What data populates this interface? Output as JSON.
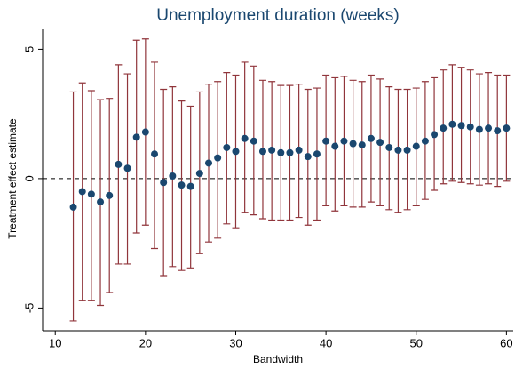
{
  "chart_data": {
    "type": "scatter",
    "title": "Unemployment duration (weeks)",
    "x_label": "Bandwidth",
    "y_label": "Treatment effect estimate",
    "x": [
      12,
      13,
      14,
      15,
      16,
      17,
      18,
      19,
      20,
      21,
      22,
      23,
      24,
      25,
      26,
      27,
      28,
      29,
      30,
      31,
      32,
      33,
      34,
      35,
      36,
      37,
      38,
      39,
      40,
      41,
      42,
      43,
      44,
      45,
      46,
      47,
      48,
      49,
      50,
      51,
      52,
      53,
      54,
      55,
      56,
      57,
      58,
      59,
      60
    ],
    "series": [
      {
        "color": "#1a476f",
        "error_color": "#90353b",
        "values": [
          -1.1,
          -0.5,
          -0.6,
          -0.9,
          -0.65,
          0.55,
          0.4,
          1.6,
          1.8,
          0.95,
          -0.15,
          0.1,
          -0.25,
          -0.3,
          0.2,
          0.6,
          0.8,
          1.2,
          1.05,
          1.55,
          1.45,
          1.05,
          1.1,
          1.0,
          1.0,
          1.1,
          0.85,
          0.95,
          1.45,
          1.25,
          1.45,
          1.35,
          1.3,
          1.55,
          1.4,
          1.2,
          1.1,
          1.1,
          1.25,
          1.45,
          1.7,
          1.95,
          2.1,
          2.05,
          2.0,
          1.9,
          1.95,
          1.85,
          1.95
        ],
        "lower": [
          -5.5,
          -4.7,
          -4.7,
          -4.9,
          -4.4,
          -3.3,
          -3.3,
          -2.1,
          -1.8,
          -2.7,
          -3.75,
          -3.4,
          -3.55,
          -3.45,
          -2.9,
          -2.45,
          -2.3,
          -1.75,
          -1.9,
          -1.3,
          -1.4,
          -1.55,
          -1.6,
          -1.6,
          -1.6,
          -1.5,
          -1.8,
          -1.6,
          -1.05,
          -1.25,
          -1.05,
          -1.1,
          -1.1,
          -0.9,
          -1.05,
          -1.2,
          -1.3,
          -1.2,
          -1.05,
          -0.8,
          -0.45,
          -0.2,
          -0.1,
          -0.15,
          -0.2,
          -0.25,
          -0.2,
          -0.3,
          -0.1
        ],
        "upper": [
          3.35,
          3.7,
          3.4,
          3.05,
          3.1,
          4.4,
          4.05,
          5.35,
          5.4,
          4.5,
          3.45,
          3.55,
          3.0,
          2.8,
          3.35,
          3.65,
          3.75,
          4.1,
          4.0,
          4.5,
          4.35,
          3.8,
          3.75,
          3.6,
          3.6,
          3.65,
          3.45,
          3.5,
          4.0,
          3.9,
          3.95,
          3.8,
          3.75,
          4.0,
          3.85,
          3.55,
          3.45,
          3.45,
          3.5,
          3.75,
          3.9,
          4.2,
          4.4,
          4.3,
          4.2,
          4.05,
          4.1,
          4.0,
          4.0
        ]
      }
    ],
    "reference_line": 0,
    "xlim": [
      8.6,
      60.75
    ],
    "ylim": [
      -5.88,
      5.77
    ],
    "xticks": [
      10,
      20,
      30,
      40,
      50,
      60
    ],
    "yticks": [
      -5,
      0,
      5
    ]
  }
}
